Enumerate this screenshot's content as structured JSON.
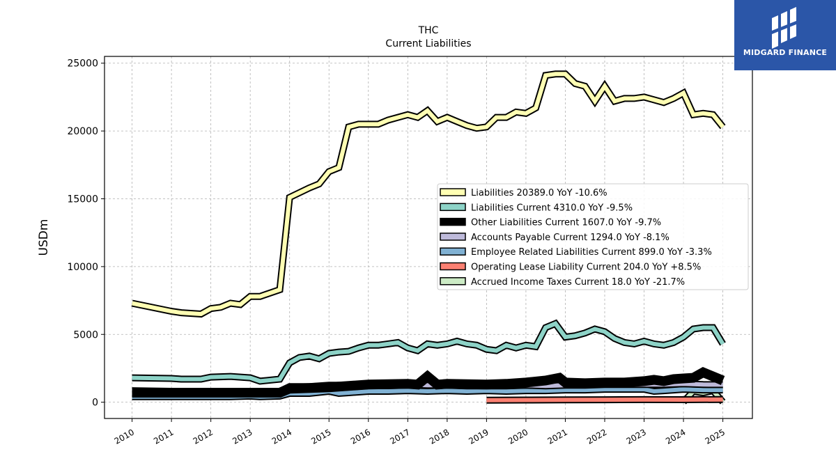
{
  "chart_data": {
    "type": "line",
    "title": "THC",
    "subtitle": "Current  Liabilities",
    "ylabel": "USDm",
    "ylim": [
      -1200,
      25500
    ],
    "xlim": [
      2009.3,
      2025.75
    ],
    "yticks": [
      0,
      5000,
      10000,
      15000,
      20000,
      25000
    ],
    "xticks": [
      "2010",
      "2011",
      "2012",
      "2013",
      "2014",
      "2015",
      "2016",
      "2017",
      "2018",
      "2019",
      "2020",
      "2021",
      "2022",
      "2023",
      "2024",
      "2025"
    ],
    "grid": true,
    "legend_position": "center-right",
    "series": [
      {
        "name": "Liabilities  20389.0 YoY -10.6%",
        "color": "#ffffb3",
        "x": [
          2010.0,
          2011.0,
          2011.25,
          2011.75,
          2012.0,
          2012.25,
          2012.5,
          2012.75,
          2013.0,
          2013.25,
          2013.75,
          2014.0,
          2014.5,
          2014.75,
          2015.0,
          2015.25,
          2015.5,
          2015.75,
          2016.0,
          2016.25,
          2016.5,
          2016.75,
          2017.0,
          2017.25,
          2017.5,
          2017.75,
          2018.0,
          2018.25,
          2018.5,
          2018.75,
          2019.0,
          2019.25,
          2019.5,
          2019.75,
          2020.0,
          2020.25,
          2020.5,
          2020.75,
          2021.0,
          2021.25,
          2021.5,
          2021.75,
          2022.0,
          2022.25,
          2022.5,
          2022.75,
          2023.0,
          2023.25,
          2023.5,
          2023.75,
          2024.0,
          2024.25,
          2024.5,
          2024.75,
          2025.0
        ],
        "y": [
          7300,
          6700,
          6600,
          6500,
          6900,
          7000,
          7300,
          7200,
          7800,
          7800,
          8300,
          15100,
          15800,
          16100,
          17000,
          17300,
          20300,
          20500,
          20500,
          20500,
          20800,
          21000,
          21200,
          21000,
          21500,
          20700,
          21000,
          20700,
          20400,
          20200,
          20300,
          21000,
          21000,
          21400,
          21300,
          21700,
          24100,
          24200,
          24200,
          23500,
          23300,
          22200,
          23300,
          22200,
          22400,
          22400,
          22500,
          22300,
          22100,
          22400,
          22800,
          21200,
          21300,
          21200,
          20300
        ]
      },
      {
        "name": "Liabilities Current  4310.0 YoY -9.5%",
        "color": "#8dd3c7",
        "x": [
          2010.0,
          2011.0,
          2011.25,
          2011.75,
          2012.0,
          2012.5,
          2013.0,
          2013.25,
          2013.75,
          2014.0,
          2014.25,
          2014.5,
          2014.75,
          2015.0,
          2015.25,
          2015.5,
          2015.75,
          2016.0,
          2016.25,
          2016.5,
          2016.75,
          2017.0,
          2017.25,
          2017.5,
          2017.75,
          2018.0,
          2018.25,
          2018.5,
          2018.75,
          2019.0,
          2019.25,
          2019.5,
          2019.75,
          2020.0,
          2020.25,
          2020.5,
          2020.75,
          2021.0,
          2021.25,
          2021.5,
          2021.75,
          2022.0,
          2022.25,
          2022.5,
          2022.75,
          2023.0,
          2023.25,
          2023.5,
          2023.75,
          2024.0,
          2024.25,
          2024.5,
          2024.75,
          2025.0
        ],
        "y": [
          1800,
          1750,
          1700,
          1700,
          1850,
          1900,
          1800,
          1550,
          1700,
          2900,
          3300,
          3400,
          3200,
          3600,
          3700,
          3750,
          4000,
          4200,
          4200,
          4300,
          4400,
          4000,
          3800,
          4300,
          4200,
          4300,
          4500,
          4300,
          4200,
          3900,
          3800,
          4200,
          4000,
          4200,
          4100,
          5500,
          5800,
          4800,
          4900,
          5100,
          5400,
          5200,
          4700,
          4400,
          4300,
          4500,
          4300,
          4200,
          4400,
          4800,
          5400,
          5500,
          5500,
          4300
        ]
      },
      {
        "name": "Other Liabilities Current  1607.0 YoY -9.7%",
        "color": "#000000",
        "x": [
          2010.0,
          2011.0,
          2012.0,
          2013.0,
          2013.75,
          2014.0,
          2015.0,
          2016.0,
          2017.0,
          2017.25,
          2017.5,
          2017.75,
          2018.0,
          2019.0,
          2019.5,
          2020.0,
          2020.5,
          2020.85,
          2021.0,
          2021.5,
          2022.0,
          2022.5,
          2023.0,
          2023.25,
          2023.5,
          2023.75,
          2024.0,
          2024.25,
          2024.5,
          2024.75,
          2025.0
        ],
        "y": [
          700,
          700,
          700,
          700,
          700,
          1000,
          1100,
          1300,
          1350,
          1300,
          1900,
          1300,
          1350,
          1300,
          1350,
          1450,
          1600,
          1800,
          1450,
          1400,
          1450,
          1450,
          1550,
          1650,
          1550,
          1700,
          1750,
          1800,
          2200,
          1900,
          1600
        ]
      },
      {
        "name": "Accounts Payable Current  1294.0 YoY -8.1%",
        "color": "#bebada",
        "x": [
          2010.0,
          2011.0,
          2011.5,
          2012.0,
          2012.5,
          2013.0,
          2013.5,
          2013.75,
          2014.0,
          2014.5,
          2015.0,
          2015.5,
          2016.0,
          2016.5,
          2017.0,
          2017.5,
          2018.0,
          2018.5,
          2019.0,
          2019.5,
          2020.0,
          2020.5,
          2021.0,
          2021.5,
          2022.0,
          2022.5,
          2023.0,
          2023.5,
          2024.0,
          2024.5,
          2025.0
        ],
        "y": [
          850,
          800,
          750,
          800,
          800,
          800,
          750,
          800,
          1150,
          1150,
          1250,
          1250,
          1350,
          1300,
          1300,
          1250,
          1250,
          1200,
          1200,
          1200,
          1250,
          1200,
          1250,
          1250,
          1300,
          1300,
          1300,
          1300,
          1350,
          1300,
          1294
        ]
      },
      {
        "name": "Employee Related Liabilities Current  899.0 YoY -3.3%",
        "color": "#80b1d3",
        "x": [
          2010.0,
          2011.0,
          2012.0,
          2012.5,
          2013.0,
          2013.25,
          2013.75,
          2014.0,
          2014.5,
          2015.0,
          2015.25,
          2015.5,
          2016.0,
          2016.5,
          2017.0,
          2017.5,
          2018.0,
          2018.5,
          2019.0,
          2019.5,
          2020.0,
          2020.5,
          2021.0,
          2021.5,
          2022.0,
          2022.5,
          2023.0,
          2023.25,
          2023.5,
          2024.0,
          2024.5,
          2025.0
        ],
        "y": [
          400,
          400,
          400,
          400,
          450,
          400,
          450,
          650,
          650,
          800,
          650,
          700,
          800,
          800,
          850,
          800,
          850,
          800,
          850,
          800,
          850,
          850,
          900,
          900,
          950,
          950,
          950,
          800,
          850,
          950,
          900,
          899
        ]
      },
      {
        "name": "Operating Lease Liability Current  204.0 YoY +8.5%",
        "color": "#fb8072",
        "x": [
          2019.0,
          2020.0,
          2021.0,
          2022.0,
          2023.0,
          2024.0,
          2025.0
        ],
        "y": [
          150,
          160,
          170,
          180,
          190,
          188,
          204
        ]
      },
      {
        "name": "Accrued Income Taxes Current  18.0 YoY -21.7%",
        "color": "#ccebc5",
        "x": [
          2024.0,
          2024.25,
          2024.5,
          2024.75,
          2025.0
        ],
        "y": [
          23,
          800,
          700,
          850,
          18
        ]
      }
    ]
  },
  "brand": {
    "name": "MIDGARD FINANCE",
    "bg_color": "#2b56a8"
  }
}
